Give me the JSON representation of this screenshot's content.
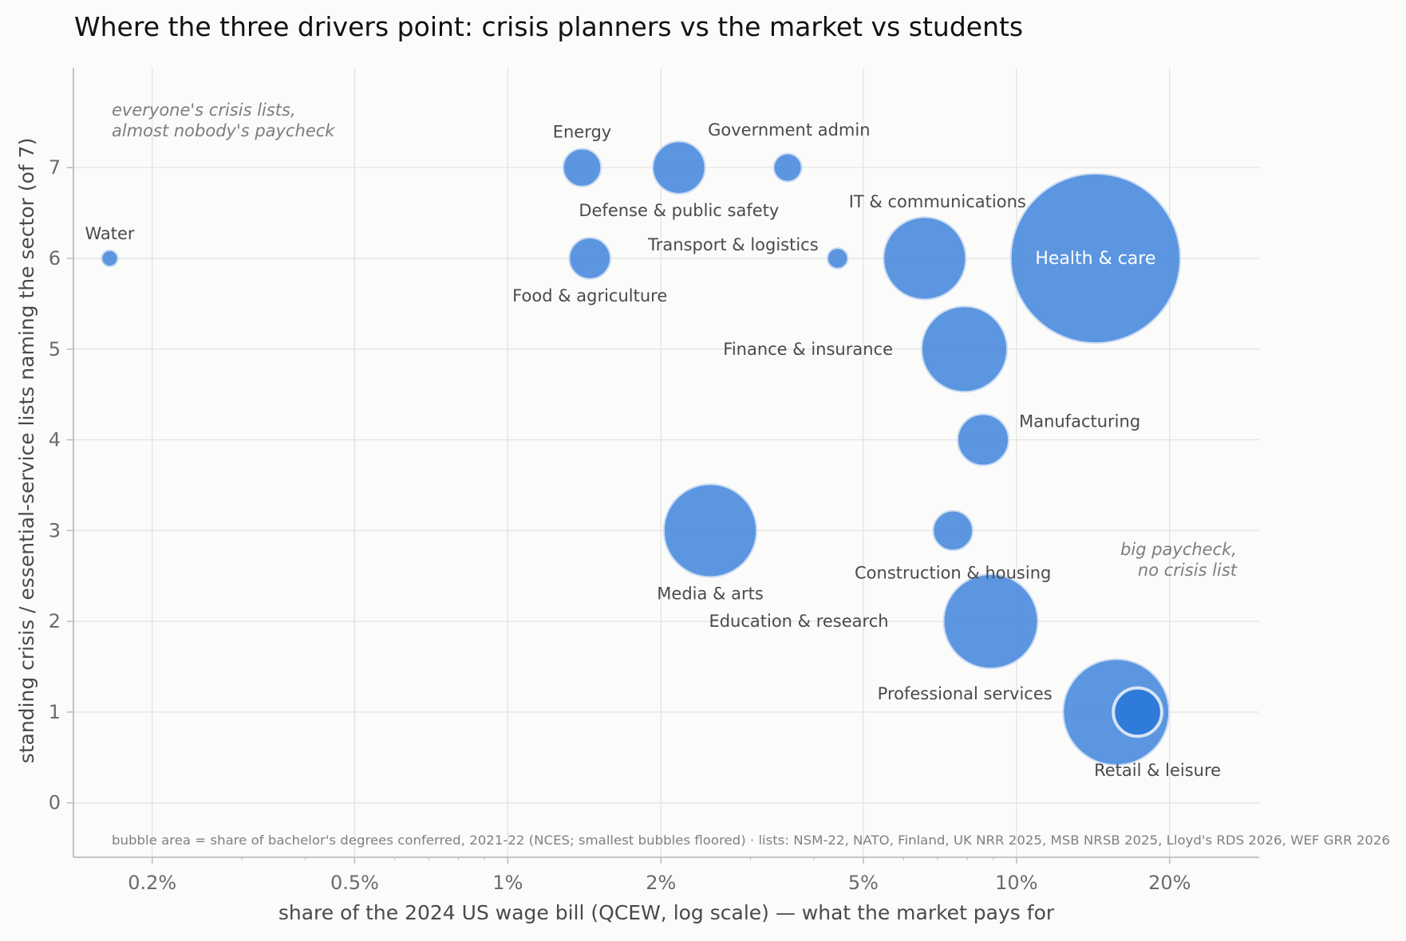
{
  "chart_data": {
    "type": "scatter",
    "title": "Where the three drivers point: crisis planners vs the market vs students",
    "xlabel": "share of the 2024 US wage bill  (QCEW, log scale)  —  what the market pays for",
    "ylabel": "standing crisis / essential-service lists naming the sector  (of 7)",
    "x_scale": "log",
    "xlim": [
      0.14,
      30
    ],
    "ylim": [
      -0.6,
      8.1
    ],
    "x_ticks": [
      {
        "value": 0.2,
        "label": "0.2%"
      },
      {
        "value": 0.5,
        "label": "0.5%"
      },
      {
        "value": 1,
        "label": "1%"
      },
      {
        "value": 2,
        "label": "2%"
      },
      {
        "value": 5,
        "label": "5%"
      },
      {
        "value": 10,
        "label": "10%"
      },
      {
        "value": 20,
        "label": "20%"
      }
    ],
    "y_ticks": [
      {
        "value": 0,
        "label": "0"
      },
      {
        "value": 1,
        "label": "1"
      },
      {
        "value": 2,
        "label": "2"
      },
      {
        "value": 3,
        "label": "3"
      },
      {
        "value": 4,
        "label": "4"
      },
      {
        "value": 5,
        "label": "5"
      },
      {
        "value": 6,
        "label": "6"
      },
      {
        "value": 7,
        "label": "7"
      }
    ],
    "grid": true,
    "bubble_color": "#4a8bdd",
    "highlight_color": "#2f7bd9",
    "points": [
      {
        "name": "Water",
        "x": 0.165,
        "y": 6,
        "size": 0.1,
        "label_pos": "above"
      },
      {
        "name": "Energy",
        "x": 1.4,
        "y": 7,
        "size": 0.55,
        "label_pos": "above"
      },
      {
        "name": "Defense & public safety",
        "x": 2.17,
        "y": 7,
        "size": 1.05,
        "label_pos": "below"
      },
      {
        "name": "Government admin",
        "x": 3.55,
        "y": 7,
        "size": 0.3,
        "label_pos": "above-right"
      },
      {
        "name": "Food & agriculture",
        "x": 1.45,
        "y": 6,
        "size": 0.65,
        "label_pos": "below"
      },
      {
        "name": "Transport & logistics",
        "x": 4.45,
        "y": 6,
        "size": 0.16,
        "label_pos": "above-left"
      },
      {
        "name": "IT & communications",
        "x": 6.6,
        "y": 6,
        "size": 2.6,
        "label_pos": "above"
      },
      {
        "name": "Health & care",
        "x": 14.3,
        "y": 6,
        "size": 11.0,
        "label_pos": "inside"
      },
      {
        "name": "Finance & insurance",
        "x": 7.9,
        "y": 5,
        "size": 2.8,
        "label_pos": "left"
      },
      {
        "name": "Manufacturing",
        "x": 8.6,
        "y": 4,
        "size": 1.0,
        "label_pos": "above-right"
      },
      {
        "name": "Media & arts",
        "x": 2.5,
        "y": 3,
        "size": 3.3,
        "label_pos": "below"
      },
      {
        "name": "Construction & housing",
        "x": 7.5,
        "y": 3,
        "size": 0.6,
        "label_pos": "below"
      },
      {
        "name": "Education & research",
        "x": 8.9,
        "y": 2,
        "size": 3.4,
        "label_pos": "left"
      },
      {
        "name": "Professional services",
        "x": 15.7,
        "y": 1,
        "size": 4.3,
        "label_pos": "above-left"
      },
      {
        "name": "Retail & leisure",
        "x": 17.3,
        "y": 1,
        "size": 0.9,
        "label_pos": "below",
        "highlight": true
      }
    ],
    "annotations": [
      {
        "text": "everyone's crisis lists,",
        "corner": "top-left",
        "line": 1
      },
      {
        "text": "almost nobody's paycheck",
        "corner": "top-left",
        "line": 2
      },
      {
        "text": "big paycheck,",
        "corner": "right",
        "line": 1
      },
      {
        "text": "no crisis list",
        "corner": "right",
        "line": 2
      }
    ],
    "footnote": "bubble area = share of bachelor's degrees conferred, 2021-22 (NCES; smallest bubbles floored)  ·  lists: NSM-22, NATO, Finland, UK NRR 2025, MSB NRSB 2025, Lloyd's RDS 2026, WEF GRR 2026"
  }
}
